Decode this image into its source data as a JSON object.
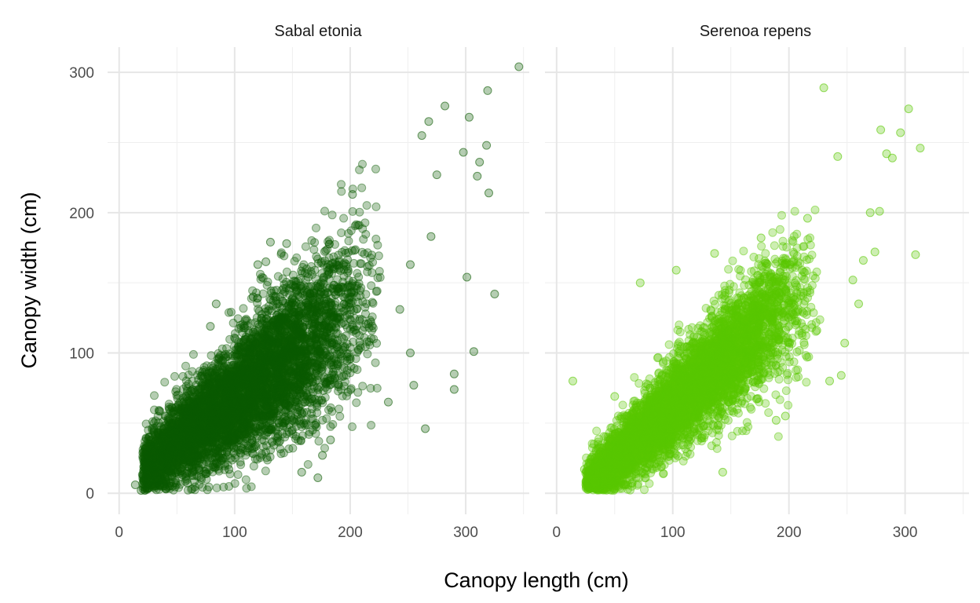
{
  "colors": {
    "background": "#ffffff",
    "grid": "#ebebeb",
    "Sabal etonia": "#0b5a00",
    "Serenoa repens": "#59c800"
  },
  "chart_data": {
    "type": "scatter",
    "facets": [
      "Sabal etonia",
      "Serenoa repens"
    ],
    "xlabel": "Canopy length (cm)",
    "ylabel": "Canopy width (cm)",
    "xlim": [
      -10,
      355
    ],
    "ylim": [
      -15,
      318
    ],
    "xticks": [
      0,
      100,
      200,
      300
    ],
    "yticks": [
      0,
      100,
      200,
      300
    ],
    "grid": true,
    "legend": "none",
    "point_opacity": 0.3,
    "approximate_point_count_per_facet": 5000,
    "trend_note": "",
    "series": [
      {
        "facet": "Sabal etonia",
        "color": "#0b5a00",
        "points": [
          [
            14,
            6
          ],
          [
            19,
            2
          ],
          [
            24,
            12
          ],
          [
            30,
            26
          ],
          [
            38,
            38
          ],
          [
            46,
            5
          ],
          [
            50,
            23
          ],
          [
            62,
            73
          ],
          [
            75,
            14
          ],
          [
            79,
            119
          ],
          [
            84,
            135
          ],
          [
            95,
            17
          ],
          [
            116,
            140
          ],
          [
            120,
            163
          ],
          [
            127,
            165
          ],
          [
            131,
            179
          ],
          [
            145,
            178
          ],
          [
            158,
            15
          ],
          [
            172,
            11
          ],
          [
            176,
            27
          ],
          [
            183,
            38
          ],
          [
            202,
            213
          ],
          [
            233,
            65
          ],
          [
            243,
            131
          ],
          [
            252,
            100
          ],
          [
            255,
            77
          ],
          [
            262,
            255
          ],
          [
            268,
            265
          ],
          [
            275,
            227
          ],
          [
            282,
            276
          ],
          [
            290,
            85
          ],
          [
            298,
            243
          ],
          [
            303,
            268
          ],
          [
            307,
            101
          ],
          [
            310,
            226
          ],
          [
            312,
            236
          ],
          [
            318,
            248
          ],
          [
            320,
            214
          ],
          [
            325,
            142
          ],
          [
            346,
            304
          ],
          [
            319,
            287
          ],
          [
            301,
            154
          ],
          [
            290,
            74
          ],
          [
            265,
            46
          ],
          [
            270,
            183
          ],
          [
            252,
            163
          ]
        ]
      },
      {
        "facet": "Serenoa repens",
        "color": "#59c800",
        "points": [
          [
            14,
            80
          ],
          [
            24,
            17
          ],
          [
            33,
            8
          ],
          [
            37,
            28
          ],
          [
            50,
            69
          ],
          [
            72,
            150
          ],
          [
            103,
            159
          ],
          [
            136,
            171
          ],
          [
            143,
            15
          ],
          [
            148,
            65
          ],
          [
            176,
            182
          ],
          [
            189,
            52
          ],
          [
            216,
            196
          ],
          [
            224,
            116
          ],
          [
            230,
            289
          ],
          [
            235,
            80
          ],
          [
            242,
            240
          ],
          [
            248,
            107
          ],
          [
            255,
            152
          ],
          [
            264,
            166
          ],
          [
            270,
            200
          ],
          [
            274,
            172
          ],
          [
            279,
            259
          ],
          [
            284,
            242
          ],
          [
            289,
            239
          ],
          [
            296,
            257
          ],
          [
            303,
            274
          ],
          [
            309,
            170
          ],
          [
            313,
            246
          ],
          [
            278,
            201
          ],
          [
            260,
            135
          ],
          [
            245,
            84
          ],
          [
            197,
            55
          ],
          [
            200,
            104
          ]
        ]
      }
    ],
    "cloud": [
      {
        "facet": "Sabal etonia",
        "x_range": [
          20,
          230
        ],
        "slope": 0.62,
        "intercept": 5,
        "spread": 15,
        "n": 5000
      },
      {
        "facet": "Serenoa repens",
        "x_range": [
          25,
          230
        ],
        "slope": 0.74,
        "intercept": -12,
        "spread": 11,
        "n": 5000
      }
    ]
  }
}
